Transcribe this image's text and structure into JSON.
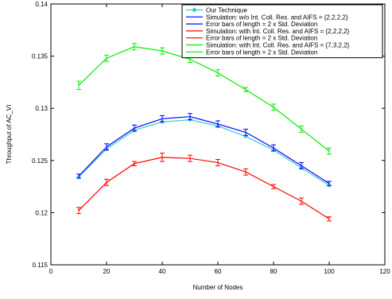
{
  "chart_data": {
    "type": "line",
    "title": "",
    "xlabel": "Number of Nodes",
    "ylabel": "Throughput of AC_VI",
    "xlim": [
      0,
      120
    ],
    "ylim": [
      0.115,
      0.14
    ],
    "xticks": [
      "0",
      "20",
      "40",
      "60",
      "80",
      "100",
      "120"
    ],
    "yticks": [
      "0.115",
      "0.12",
      "0.125",
      "0.13",
      "0.135",
      "0.14"
    ],
    "grid": false,
    "legend_position": "top-right",
    "x": [
      10,
      20,
      30,
      40,
      50,
      60,
      70,
      80,
      90,
      100
    ],
    "series": [
      {
        "name": "Our Technique",
        "color": "#33cccc",
        "marker": "diamond",
        "values": [
          0.1234,
          0.1261,
          0.1279,
          0.1287,
          0.1289,
          0.1283,
          0.1273,
          0.126,
          0.1243,
          0.1226
        ]
      },
      {
        "name": "Simulation: w/o Int. Coll. Res. and AIFS = {2,2,2,2}",
        "color": "#0000ff",
        "values": [
          0.1235,
          0.1263,
          0.1281,
          0.129,
          0.1292,
          0.1285,
          0.1277,
          0.1262,
          0.1245,
          0.1228
        ]
      },
      {
        "name": "Error bars of length = 2 x Std. Deviation",
        "color": "#0000ff",
        "error_for": 1,
        "errors": [
          0.0002,
          0.0003,
          0.0003,
          0.0003,
          0.0003,
          0.0003,
          0.0003,
          0.0003,
          0.0003,
          0.0002
        ]
      },
      {
        "name": "Simulation: with Int. Coll. Res. and AIFS = {2,2,2,2}",
        "color": "#ff0000",
        "values": [
          0.1202,
          0.1229,
          0.1247,
          0.1253,
          0.1252,
          0.1248,
          0.1239,
          0.1225,
          0.1211,
          0.1194
        ]
      },
      {
        "name": "Error bars of length = 2 x Std. Deviation",
        "color": "#ff0000",
        "error_for": 3,
        "errors": [
          0.0003,
          0.0003,
          0.0002,
          0.0004,
          0.0003,
          0.0003,
          0.0003,
          0.0002,
          0.0003,
          0.0002
        ]
      },
      {
        "name": "Simulation: with Int. Coll. Res. and AIFS = {7,3,2,2}",
        "color": "#00ee00",
        "values": [
          0.1322,
          0.1348,
          0.1359,
          0.1355,
          0.1347,
          0.1334,
          0.1318,
          0.1301,
          0.128,
          0.1259
        ]
      },
      {
        "name": "Error bars of length = 2 x Std. Deviation",
        "color": "#00ee00",
        "error_for": 5,
        "errors": [
          0.0004,
          0.0003,
          0.0003,
          0.0003,
          0.0003,
          0.0003,
          0.0002,
          0.0003,
          0.0003,
          0.0003
        ]
      }
    ]
  }
}
